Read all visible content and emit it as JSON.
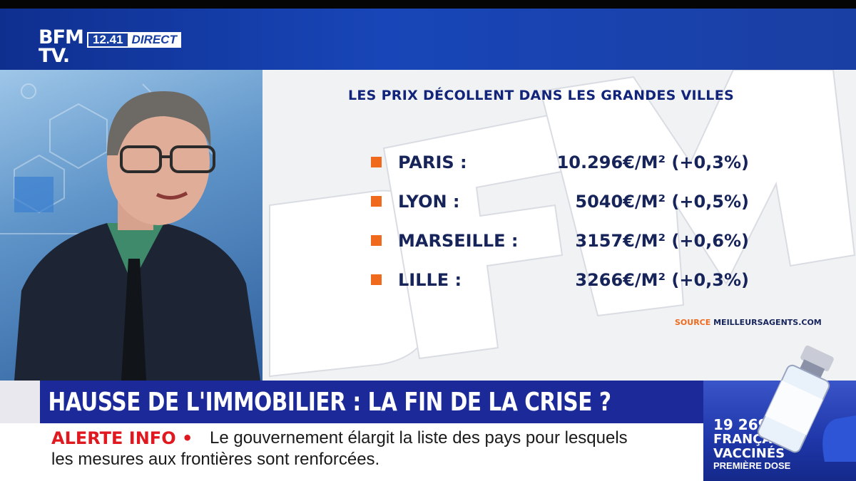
{
  "channel": {
    "logo_line1": "BFM",
    "logo_line2": "TV.",
    "time": "12.41",
    "live": "DIRECT"
  },
  "panel": {
    "title": "LES PRIX DÉCOLLENT DANS LES GRANDES VILLES",
    "rows": [
      {
        "city": "PARIS :",
        "price": "10.296€/M² (+0,3%)"
      },
      {
        "city": "LYON :",
        "price": "5040€/M² (+0,5%)"
      },
      {
        "city": "MARSEILLE :",
        "price": "3157€/M² (+0,6%)"
      },
      {
        "city": "LILLE :",
        "price": "3266€/M² (+0,3%)"
      }
    ],
    "source_label": "SOURCE",
    "source_name": "MEILLEURSAGENTS.COM",
    "bullet_color": "#ef6a1c"
  },
  "headline": "HAUSSE DE L'IMMOBILIER : LA FIN DE LA CRISE ?",
  "ticker": {
    "label": "ALERTE INFO",
    "bullet": "•",
    "line1": "Le gouvernement élargit la liste des pays pour lesquels",
    "line2": "les mesures aux frontières sont renforcées."
  },
  "vaccination": {
    "count": "19 269 311",
    "line2": "FRANÇAIS",
    "line3": "VACCINÉS",
    "line4": "PREMIÈRE DOSE"
  },
  "colors": {
    "brand_blue": "#1c2a99",
    "alert_red": "#e0181f",
    "accent_orange": "#ef6a1c"
  }
}
